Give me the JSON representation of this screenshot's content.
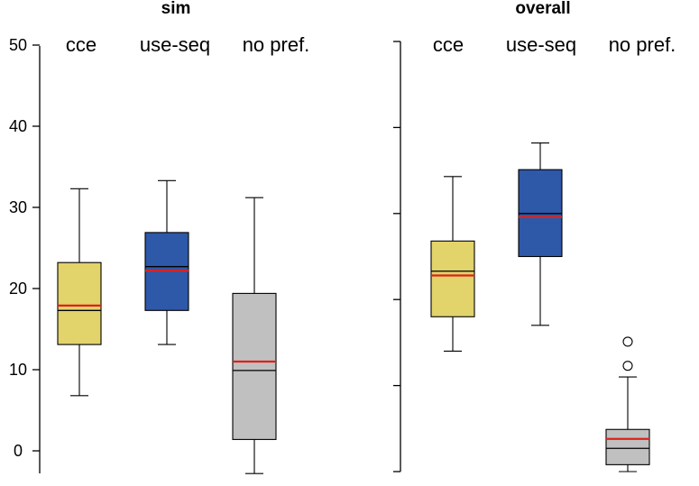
{
  "chart_data": [
    {
      "type": "boxplot",
      "title": "sim",
      "xlabel": "",
      "ylabel": "",
      "ylim": [
        -3,
        52
      ],
      "yticks": [
        0,
        10,
        20,
        30,
        40,
        50
      ],
      "ytick_labels": [
        "0",
        "10",
        "20",
        "30",
        "40",
        "50"
      ],
      "mean_line_color": "#e0201b",
      "median_line_color": "#000000",
      "boxes": [
        {
          "label": "cce",
          "color": "#e2d36b",
          "whisker_low": 6.8,
          "q1": 13.1,
          "median": 17.3,
          "mean": 17.9,
          "q3": 23.2,
          "whisker_high": 32.3,
          "outliers": []
        },
        {
          "label": "use-seq",
          "color": "#2e58a8",
          "whisker_low": 13.1,
          "q1": 17.3,
          "median": 22.7,
          "mean": 22.2,
          "q3": 26.9,
          "whisker_high": 33.3,
          "outliers": []
        },
        {
          "label": "no pref.",
          "color": "#c0c0c0",
          "whisker_low": -2.8,
          "q1": 1.4,
          "median": 9.9,
          "mean": 11.0,
          "q3": 19.4,
          "whisker_high": 31.2,
          "outliers": []
        }
      ]
    },
    {
      "type": "boxplot",
      "title": "overall",
      "xlabel": "",
      "ylabel": "",
      "ylim": [
        -0.5,
        50
      ],
      "yticks": [
        0,
        10,
        20,
        30,
        40,
        50
      ],
      "ytick_labels": [],
      "mean_line_color": "#e0201b",
      "median_line_color": "#000000",
      "boxes": [
        {
          "label": "cce",
          "color": "#e2d36b",
          "whisker_low": 14,
          "q1": 18,
          "median": 23.3,
          "mean": 22.8,
          "q3": 26.8,
          "whisker_high": 34.3,
          "outliers": []
        },
        {
          "label": "use-seq",
          "color": "#2e58a8",
          "whisker_low": 17,
          "q1": 25,
          "median": 30,
          "mean": 29.6,
          "q3": 35.1,
          "whisker_high": 38.2,
          "outliers": []
        },
        {
          "label": "no pref.",
          "color": "#c0c0c0",
          "whisker_low": 0,
          "q1": 0.8,
          "median": 2.7,
          "mean": 3.8,
          "q3": 4.9,
          "whisker_high": 11,
          "outliers": [
            12.3,
            15.1
          ]
        }
      ]
    }
  ]
}
